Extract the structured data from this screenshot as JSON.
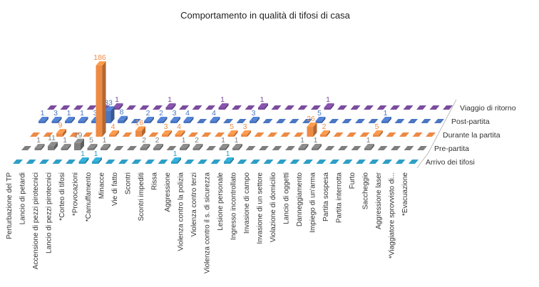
{
  "chart_data": {
    "type": "bar",
    "subtype": "3d-clustered-depth",
    "title": "Comportamento in qualità di tifosi di casa",
    "categories": [
      "Perturbazione del TP",
      "Lancio di petardi",
      "Accensione di pezzi pirotecnici",
      "Lancio di pezzi pirotecnici",
      "*Corteo di tifosi",
      "*Provocazioni",
      "*Camuffamento",
      "Minacce",
      "Vie di fatto",
      "Scontri",
      "Scontri impediti",
      "Rissa",
      "Aggressione",
      "Violenza contro la polizia",
      "Violenza contro terzi",
      "Violenza contro il s. di sicurezza",
      "Lesione personale",
      "Ingresso incontrollato",
      "Invasione di campo",
      "Invasione di un settore",
      "Violazione di domicilio",
      "Lancio di oggetti",
      "Danneggiamento",
      "Impiego di un'arma",
      "Partita sospesa",
      "Partita interrotta",
      "Furto",
      "Saccheggio",
      "Aggressione laser",
      "*Viaggiatore sprovvisto di...",
      "*Evacuazione"
    ],
    "series": [
      {
        "name": "Arrivo dei tifosi",
        "color": "#2e9fc6",
        "values": [
          0,
          0,
          0,
          0,
          0,
          1,
          1,
          0,
          0,
          0,
          0,
          0,
          1,
          0,
          0,
          0,
          1,
          0,
          0,
          0,
          0,
          0,
          0,
          0,
          0,
          0,
          0,
          0,
          0,
          0,
          0
        ]
      },
      {
        "name": "Pre-partita",
        "color": "#7f7f7f",
        "values": [
          0,
          1,
          11,
          1,
          19,
          5,
          1,
          0,
          0,
          2,
          2,
          0,
          1,
          2,
          0,
          1,
          1,
          0,
          0,
          0,
          0,
          1,
          1,
          0,
          0,
          0,
          1,
          0,
          0,
          0,
          0
        ]
      },
      {
        "name": "Durante la partita",
        "color": "#ed8b45",
        "values": [
          0,
          0,
          9,
          0,
          0,
          186,
          4,
          0,
          16,
          0,
          3,
          4,
          0,
          0,
          0,
          5,
          3,
          0,
          0,
          0,
          0,
          26,
          2,
          0,
          0,
          0,
          5,
          0,
          0,
          0,
          0
        ]
      },
      {
        "name": "Post-partita",
        "color": "#4a76c2",
        "values": [
          1,
          3,
          1,
          1,
          3,
          33,
          8,
          0,
          2,
          2,
          3,
          4,
          0,
          4,
          0,
          0,
          3,
          0,
          0,
          0,
          0,
          5,
          0,
          0,
          0,
          0,
          1,
          0,
          0,
          0,
          0
        ]
      },
      {
        "name": "Viaggio di ritorno",
        "color": "#7b4c9e",
        "values": [
          0,
          0,
          0,
          0,
          0,
          1,
          0,
          0,
          0,
          1,
          0,
          0,
          0,
          1,
          0,
          0,
          1,
          0,
          0,
          0,
          0,
          1,
          0,
          0,
          0,
          0,
          0,
          0,
          0,
          0,
          0
        ]
      }
    ],
    "data_labels": "shown for non-zero values",
    "legend": "depth-axis labels on right",
    "grid": false
  }
}
